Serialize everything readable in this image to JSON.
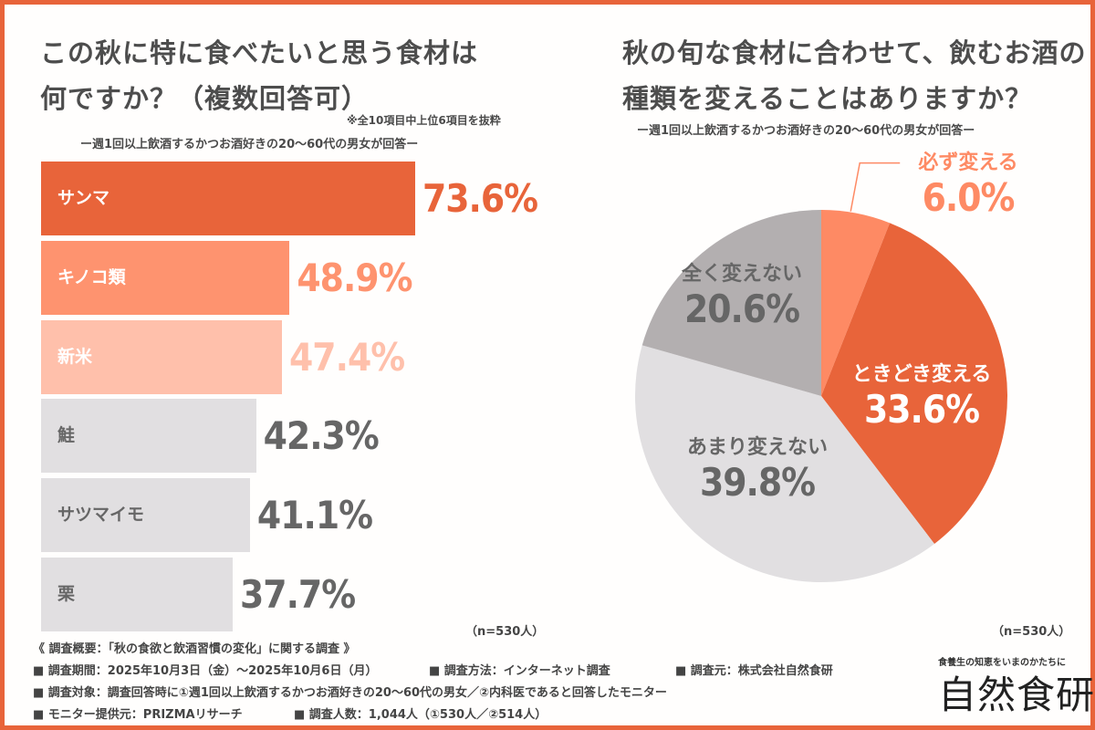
{
  "colors": {
    "accent": "#e8643a",
    "border": "#e8643a",
    "bar_top1": "#e8643a",
    "bar_top2": "#fe936f",
    "bar_top3": "#ffc0ab",
    "bar_gray": "#e1dfe1",
    "pie_always": "#fe8a64",
    "pie_sometimes": "#e8643a",
    "pie_rarely": "#e1dfe1",
    "pie_never": "#b3afb0",
    "text_gray": "#666666"
  },
  "left": {
    "title_line1": "この秋に特に食べたいと思う食材は",
    "title_line2": "何ですか？（複数回答可）",
    "note": "※全10項目中上位6項目を抜粋",
    "subtitle": "ー週1回以上飲酒するかつお酒好きの20〜60代の男女が回答ー",
    "n_label": "（n=530人）"
  },
  "right": {
    "title_line1": "秋の旬な食材に合わせて、飲むお酒の",
    "title_line2": "種類を変えることはありますか？",
    "subtitle": "ー週1回以上飲酒するかつお酒好きの20〜60代の男女が回答ー",
    "n_label": "（n=530人）"
  },
  "chart_data": [
    {
      "type": "bar",
      "orientation": "horizontal",
      "title": "この秋に特に食べたいと思う食材は何ですか？（複数回答可）",
      "categories": [
        "サンマ",
        "キノコ類",
        "新米",
        "鮭",
        "サツマイモ",
        "栗"
      ],
      "values": [
        73.6,
        48.9,
        47.4,
        42.3,
        41.1,
        37.7
      ],
      "value_labels": [
        "73.6%",
        "48.9%",
        "47.4%",
        "42.3%",
        "41.1%",
        "37.7%"
      ],
      "unit": "%",
      "xlabel": "",
      "ylabel": "",
      "xlim": [
        0,
        100
      ],
      "grid": false,
      "legend": "none",
      "n": 530
    },
    {
      "type": "pie",
      "title": "秋の旬な食材に合わせて、飲むお酒の種類を変えることはありますか？",
      "categories": [
        "必ず変える",
        "ときどき変える",
        "あまり変えない",
        "全く変えない"
      ],
      "values": [
        6.0,
        33.6,
        39.8,
        20.6
      ],
      "value_labels": [
        "6.0%",
        "33.6%",
        "39.8%",
        "20.6%"
      ],
      "start": "12 o'clock",
      "direction": "clockwise",
      "legend": "none",
      "n": 530
    }
  ],
  "footer": {
    "heading": "《 調査概要：「秋の食欲と飲酒習慣の変化」に関する調査 》",
    "period": "■ 調査期間：2025年10月3日（金）〜2025年10月6日（月）",
    "method": "■ 調査方法：インターネット調査",
    "source": "■ 調査元：株式会社自然食研",
    "target": "■ 調査対象：調査回答時に①週1回以上飲酒するかつお酒好きの20〜60代の男女／②内科医であると回答したモニター",
    "provider": "■ モニター提供元：PRIZMAリサーチ",
    "count": "■ 調査人数：1,044人（①530人／②514人）"
  },
  "brand": {
    "tagline": "食養生の知恵をいまのかたちに",
    "name": "自然食研"
  }
}
